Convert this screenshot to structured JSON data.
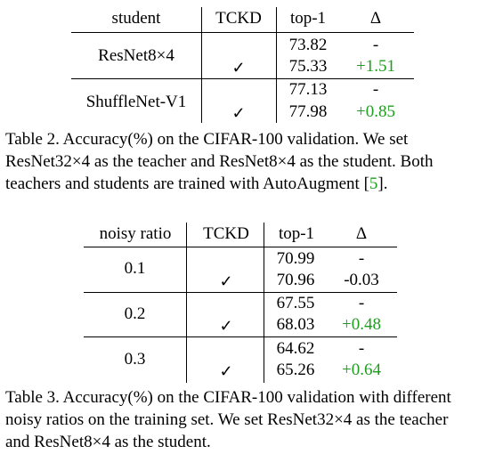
{
  "table2": {
    "headers": [
      "student",
      "TCKD",
      "top-1",
      "Δ"
    ],
    "groups": [
      {
        "student": "ResNet8×4",
        "rows": [
          {
            "tckd": "",
            "top1": "73.82",
            "delta": "-"
          },
          {
            "tckd": "✓",
            "top1": "75.33",
            "delta": "+1.51"
          }
        ]
      },
      {
        "student": "ShuffleNet-V1",
        "rows": [
          {
            "tckd": "",
            "top1": "77.13",
            "delta": "-"
          },
          {
            "tckd": "✓",
            "top1": "77.98",
            "delta": "+0.85"
          }
        ]
      }
    ],
    "caption": {
      "line1": "Table 2.  Accuracy(%) on the CIFAR-100 validation.  We set",
      "line2": "ResNet32×4 as the teacher and ResNet8×4 as the student.  Both",
      "line3_pre": "teachers and students are trained with AutoAugment [",
      "line3_ref": "5",
      "line3_post": "]."
    }
  },
  "table3": {
    "headers": [
      "noisy ratio",
      "TCKD",
      "top-1",
      "Δ"
    ],
    "groups": [
      {
        "ratio": "0.1",
        "rows": [
          {
            "tckd": "",
            "top1": "70.99",
            "delta": "-"
          },
          {
            "tckd": "✓",
            "top1": "70.96",
            "delta": "-0.03"
          }
        ]
      },
      {
        "ratio": "0.2",
        "rows": [
          {
            "tckd": "",
            "top1": "67.55",
            "delta": "-"
          },
          {
            "tckd": "✓",
            "top1": "68.03",
            "delta": "+0.48"
          }
        ]
      },
      {
        "ratio": "0.3",
        "rows": [
          {
            "tckd": "",
            "top1": "64.62",
            "delta": "-"
          },
          {
            "tckd": "✓",
            "top1": "65.26",
            "delta": "+0.64"
          }
        ]
      }
    ],
    "caption": {
      "line1": "Table 3. Accuracy(%) on the CIFAR-100 validation with different",
      "line2": "noisy ratios on the training set. We set ResNet32×4 as the teacher",
      "line3": "and ResNet8×4 as the student."
    }
  },
  "colors": {
    "positive_delta": "#1e9e1e",
    "citation": "#1e9e1e"
  }
}
